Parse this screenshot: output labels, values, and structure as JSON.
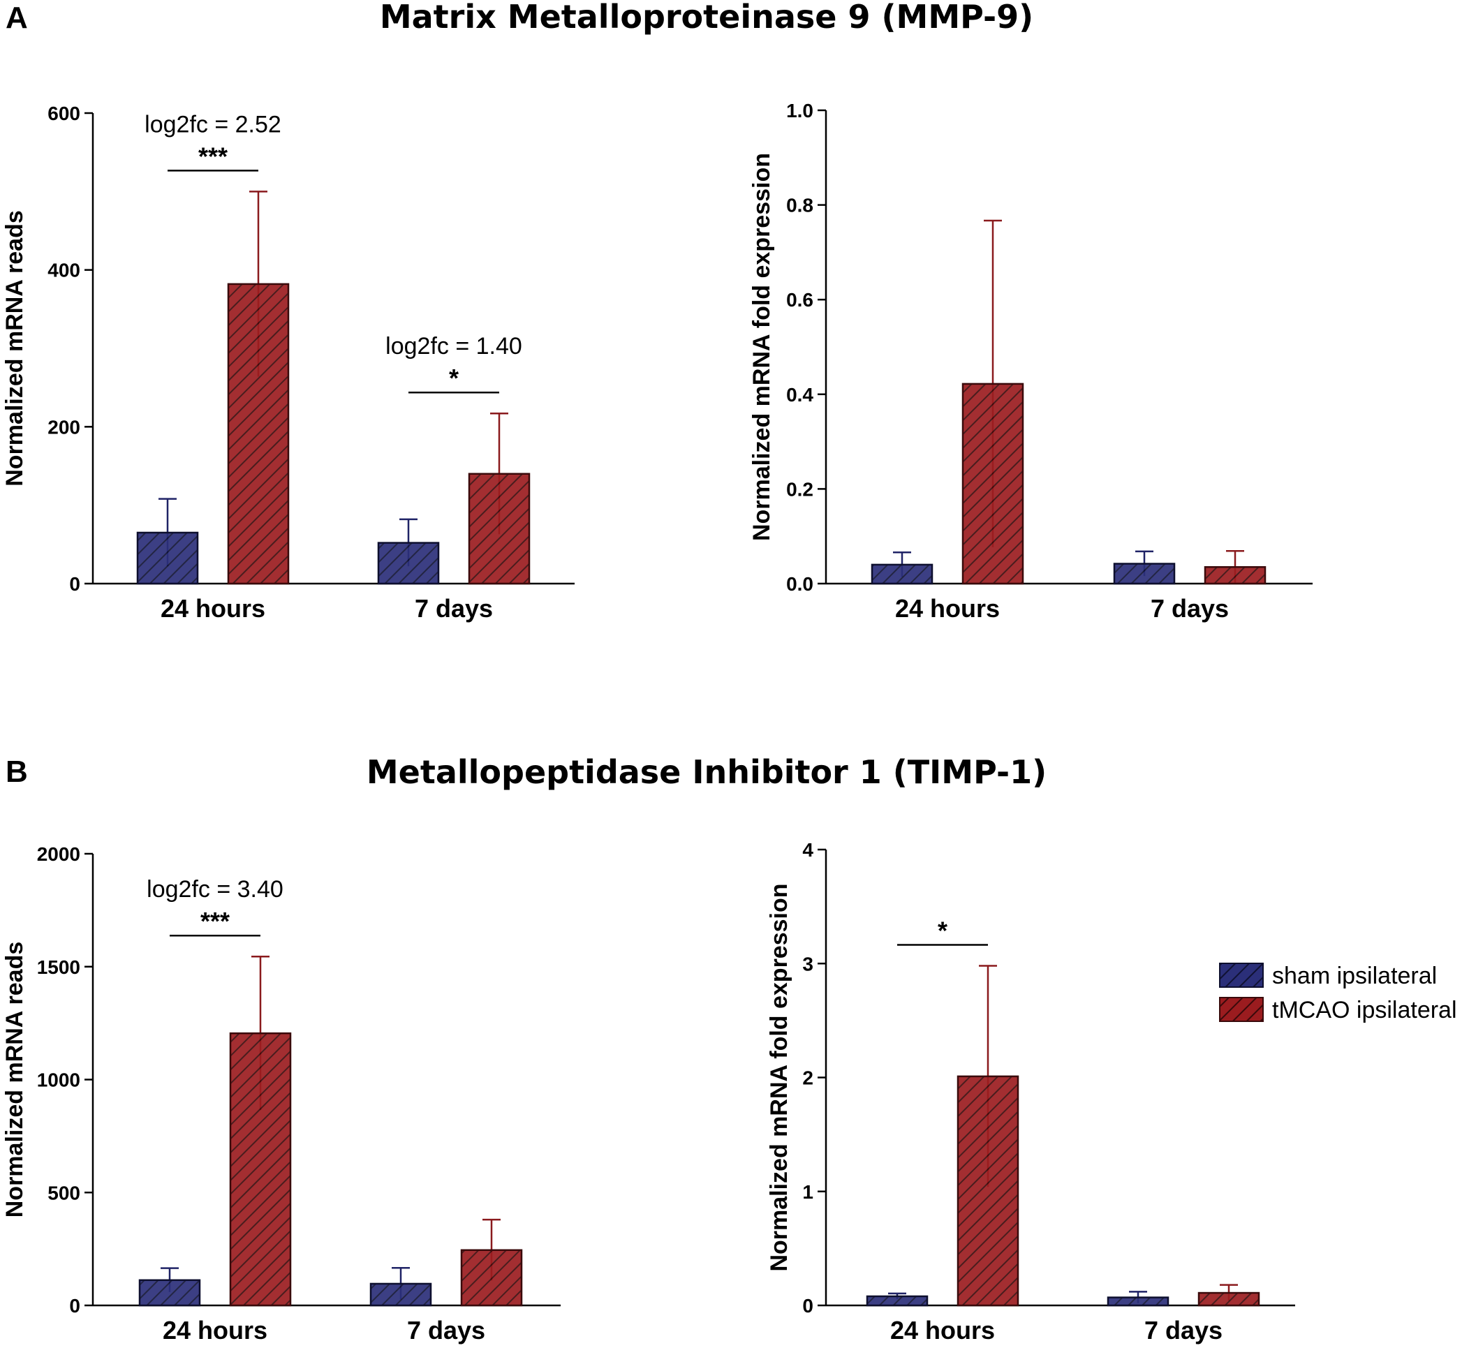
{
  "panels": {
    "A": {
      "letter": "A",
      "title": "Matrix Metalloproteinase 9 (MMP-9)"
    },
    "B": {
      "letter": "B",
      "title": "Metallopeptidase Inhibitor 1 (TIMP-1)"
    }
  },
  "legend": {
    "items": [
      {
        "label": "sham ipsilateral",
        "color": "#2b2f79"
      },
      {
        "label": "tMCAO ipsilateral",
        "color": "#9b1c1f"
      }
    ]
  },
  "chart_data": [
    {
      "id": "A-left",
      "panel": "A",
      "type": "bar",
      "categories": [
        "24 hours",
        "7 days"
      ],
      "series": [
        {
          "name": "sham ipsilateral",
          "values": [
            65,
            52
          ],
          "errors": [
            43,
            30
          ]
        },
        {
          "name": "tMCAO ipsilateral",
          "values": [
            382,
            140
          ],
          "errors": [
            118,
            77
          ]
        }
      ],
      "ylabel": "Normalized mRNA reads",
      "xlabel": "",
      "ylim": [
        0,
        600
      ],
      "yticks": [
        "0",
        "200",
        "400",
        "600"
      ],
      "annotations": [
        {
          "category": 0,
          "label": "log2fc = 2.52",
          "stars": "***"
        },
        {
          "category": 1,
          "label": "log2fc = 1.40",
          "stars": "*"
        }
      ]
    },
    {
      "id": "A-right",
      "panel": "A",
      "type": "bar",
      "categories": [
        "24 hours",
        "7 days"
      ],
      "series": [
        {
          "name": "sham ipsilateral",
          "values": [
            0.04,
            0.042
          ],
          "errors": [
            0.026,
            0.026
          ]
        },
        {
          "name": "tMCAO ipsilateral",
          "values": [
            0.422,
            0.035
          ],
          "errors": [
            0.345,
            0.034
          ]
        }
      ],
      "ylabel": "Normalized mRNA fold expression",
      "xlabel": "",
      "ylim": [
        0,
        1.0
      ],
      "yticks": [
        "0.0",
        "0.2",
        "0.4",
        "0.6",
        "0.8",
        "1.0"
      ],
      "annotations": []
    },
    {
      "id": "B-left",
      "panel": "B",
      "type": "bar",
      "categories": [
        "24 hours",
        "7 days"
      ],
      "series": [
        {
          "name": "sham ipsilateral",
          "values": [
            112,
            96
          ],
          "errors": [
            53,
            70
          ]
        },
        {
          "name": "tMCAO ipsilateral",
          "values": [
            1205,
            245
          ],
          "errors": [
            340,
            135
          ]
        }
      ],
      "ylabel": "Normalized mRNA reads",
      "xlabel": "",
      "ylim": [
        0,
        2000
      ],
      "yticks": [
        "0",
        "500",
        "1000",
        "1500",
        "2000"
      ],
      "annotations": [
        {
          "category": 0,
          "label": "log2fc = 3.40",
          "stars": "***"
        }
      ]
    },
    {
      "id": "B-right",
      "panel": "B",
      "type": "bar",
      "categories": [
        "24 hours",
        "7 days"
      ],
      "series": [
        {
          "name": "sham ipsilateral",
          "values": [
            0.08,
            0.07
          ],
          "errors": [
            0.025,
            0.05
          ]
        },
        {
          "name": "tMCAO ipsilateral",
          "values": [
            2.01,
            0.11
          ],
          "errors": [
            0.97,
            0.07
          ]
        }
      ],
      "ylabel": "Normalized mRNA fold expression",
      "xlabel": "",
      "ylim": [
        0,
        4
      ],
      "yticks": [
        "0",
        "1",
        "2",
        "3",
        "4"
      ],
      "annotations": [
        {
          "category": 0,
          "label": "",
          "stars": "*"
        }
      ]
    }
  ]
}
